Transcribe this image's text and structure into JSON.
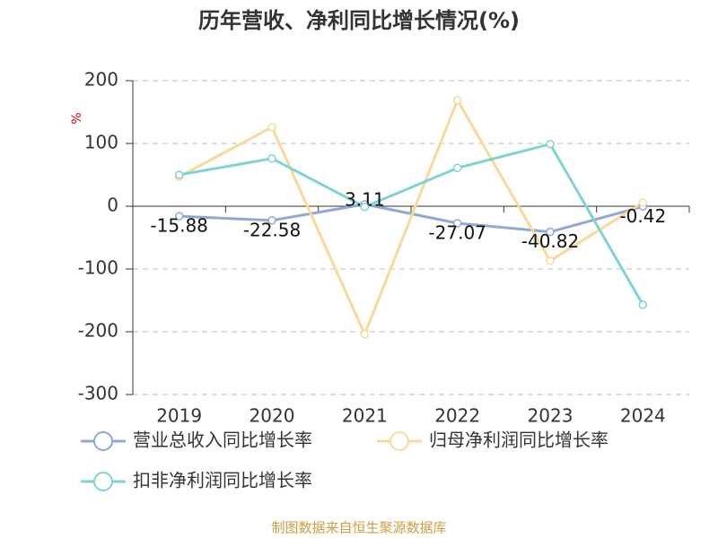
{
  "chart_data": {
    "type": "line",
    "title": "历年营收、净利同比增长情况(%)",
    "y_label": "%",
    "categories": [
      "2019",
      "2020",
      "2021",
      "2022",
      "2023",
      "2024"
    ],
    "series": [
      {
        "name": "营业总收入同比增长率",
        "color": "#8fa9d6",
        "values": [
          -15.88,
          -22.58,
          3.11,
          -27.07,
          -40.82,
          -0.42
        ],
        "show_labels": true
      },
      {
        "name": "归母净利润同比增长率",
        "color": "#f9d99a",
        "values": [
          47,
          126,
          -204,
          169,
          -87,
          6
        ],
        "show_labels": false
      },
      {
        "name": "扣非净利润同比增长率",
        "color": "#7fd3d3",
        "values": [
          50,
          76,
          -1,
          61,
          99,
          -157
        ],
        "show_labels": false
      }
    ],
    "ylim": [
      -300,
      200
    ],
    "yticks": [
      -300,
      -200,
      -100,
      0,
      100,
      200
    ],
    "grid": true,
    "source": "制图数据来自恒生聚源数据库"
  }
}
